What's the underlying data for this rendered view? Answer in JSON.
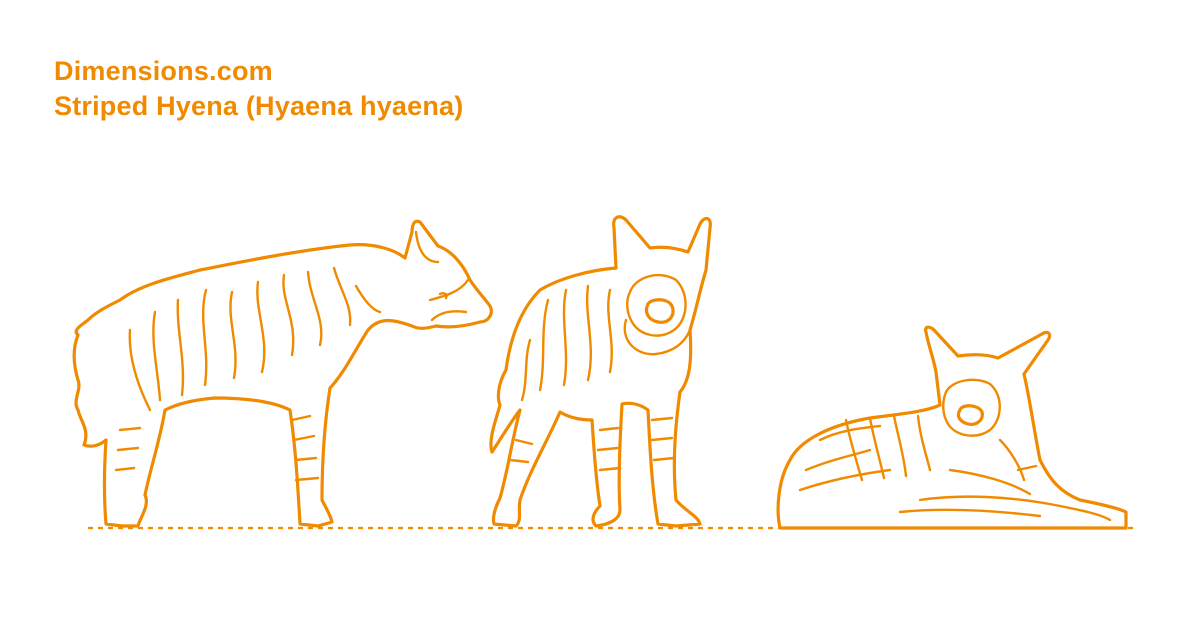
{
  "header": {
    "site": "Dimensions.com",
    "title": "Striped Hyena (Hyaena hyaena)"
  },
  "colors": {
    "accent": "#F08A00",
    "background": "#FFFFFF"
  },
  "figures": [
    {
      "id": "side-view",
      "view": "standing side profile"
    },
    {
      "id": "front-view",
      "view": "standing three-quarter front"
    },
    {
      "id": "lying-view",
      "view": "lying down"
    }
  ]
}
